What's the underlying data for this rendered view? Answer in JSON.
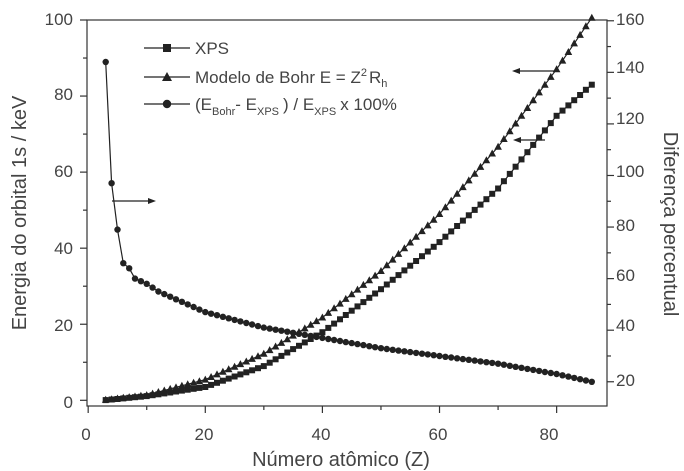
{
  "chart_data": {
    "type": "line",
    "xlabel": "Número atômico (Z)",
    "ylabel_left": "Energia do orbital 1s / keV",
    "ylabel_right": "Diferença percentual",
    "xlim": [
      0,
      90
    ],
    "ylim_left": [
      0,
      100
    ],
    "ylim_right": [
      10,
      160
    ],
    "x_ticks": [
      "0",
      "20",
      "40",
      "60",
      "80"
    ],
    "y_left_ticks": [
      "0",
      "20",
      "40",
      "60",
      "80",
      "100"
    ],
    "y_right_ticks": [
      "20",
      "40",
      "60",
      "80",
      "100",
      "120",
      "140",
      "160"
    ],
    "grid": false,
    "legend_position": "top-left",
    "series": [
      {
        "name": "XPS",
        "axis": "left",
        "marker": "square",
        "x": [
          3,
          10,
          20,
          30,
          40,
          50,
          60,
          70,
          80,
          86
        ],
        "values": [
          0.055,
          1.1,
          3.5,
          9.0,
          17.9,
          29.2,
          41.6,
          55.7,
          74.8,
          83.0
        ]
      },
      {
        "name": "Modelo de Bohr E = Z2Rh",
        "axis": "left",
        "marker": "triangle",
        "x": [
          3,
          10,
          20,
          30,
          40,
          50,
          60,
          70,
          80,
          86
        ],
        "values": [
          0.12,
          1.36,
          5.44,
          12.24,
          21.77,
          34.0,
          48.98,
          66.67,
          87.07,
          100.6
        ]
      },
      {
        "name": "(EBohr- EXPS) / EXPS x 100%",
        "axis": "right",
        "marker": "circle",
        "x": [
          3,
          4,
          5,
          6,
          7,
          8,
          9,
          10,
          12,
          15,
          20,
          25,
          30,
          40,
          50,
          60,
          70,
          80,
          86
        ],
        "values": [
          144,
          97,
          79,
          66,
          64,
          60,
          59,
          58,
          55,
          52,
          47,
          44,
          41,
          37,
          33,
          30,
          27,
          23,
          20
        ]
      }
    ],
    "legend": {
      "xps_label": "XPS",
      "bohr_label_prefix": "Modelo de Bohr E = Z",
      "bohr_label_sup": "2",
      "bohr_label_mid": "R",
      "bohr_label_sub": "h",
      "diff_open": "(E",
      "diff_sub1": "Bohr",
      "diff_mid1": "- E",
      "diff_sub2": "XPS",
      "diff_mid2": ") / E",
      "diff_sub3": "XPS",
      "diff_tail": "x 100%"
    },
    "annotations": [
      {
        "type": "arrow",
        "points_to": "right",
        "near_series": "(EBohr- EXPS) / EXPS x 100%"
      },
      {
        "type": "arrow",
        "points_to": "left",
        "near_series": "Modelo de Bohr E = Z2Rh"
      },
      {
        "type": "arrow",
        "points_to": "left",
        "near_series": "XPS"
      }
    ]
  }
}
